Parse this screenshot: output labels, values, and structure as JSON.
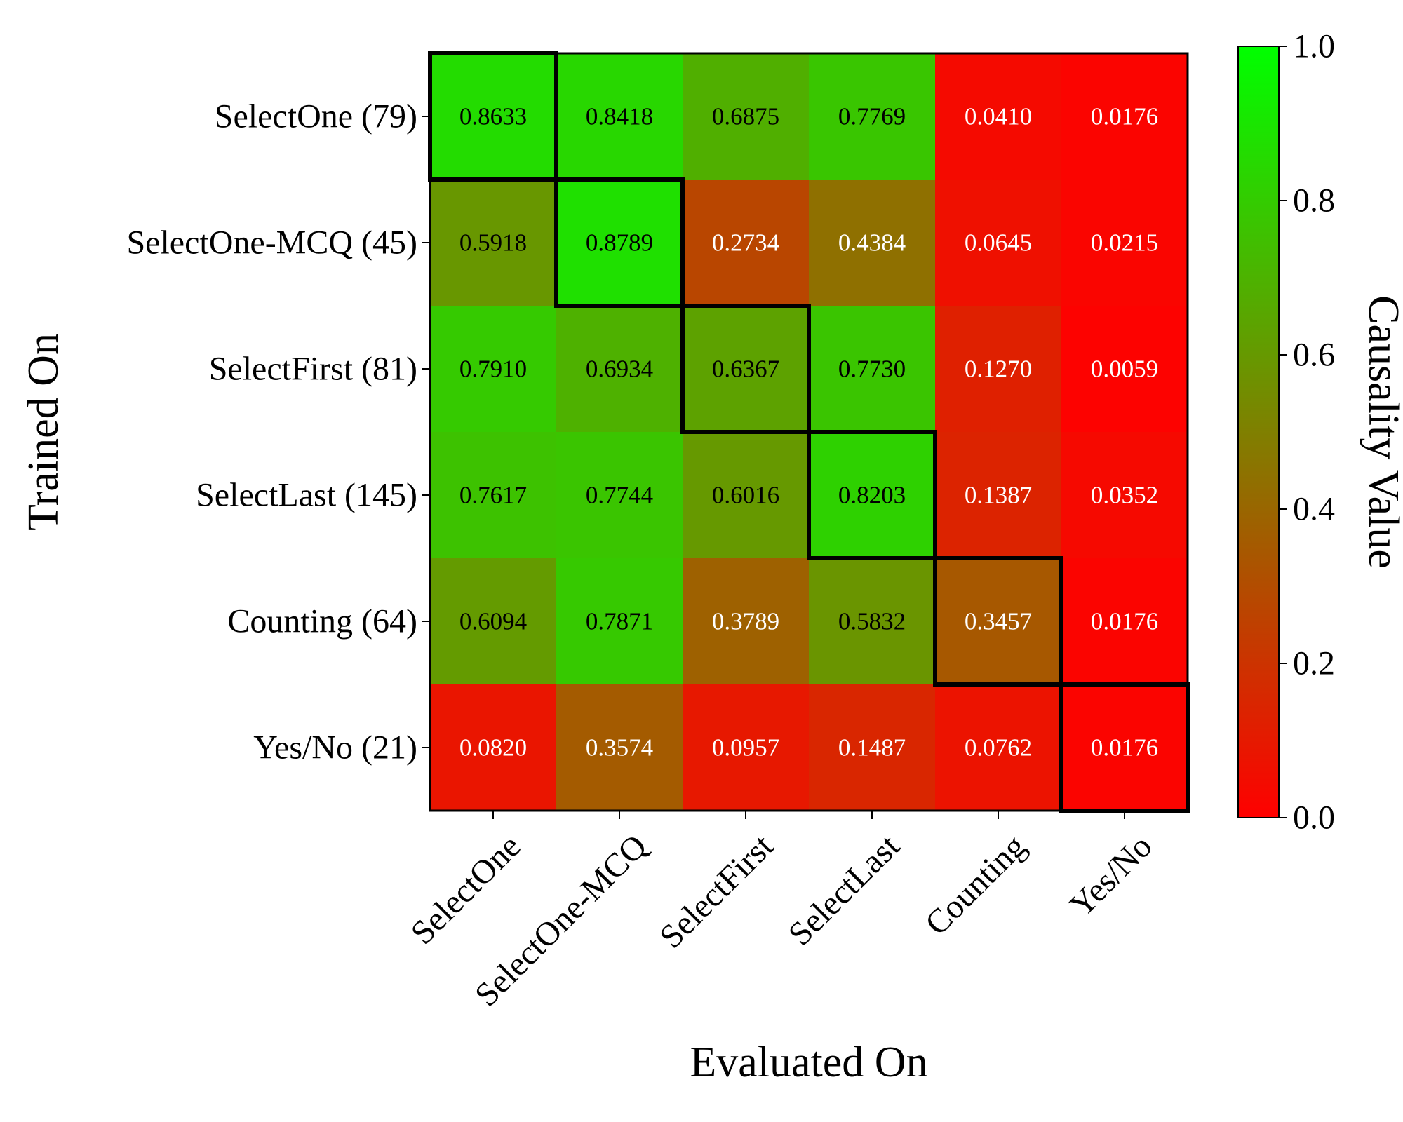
{
  "chart_data": {
    "type": "heatmap",
    "xlabel": "Evaluated On",
    "ylabel": "Trained On",
    "x_categories": [
      "SelectOne",
      "SelectOne-MCQ",
      "SelectFirst",
      "SelectLast",
      "Counting",
      "Yes/No"
    ],
    "y_categories": [
      "SelectOne (79)",
      "SelectOne-MCQ (45)",
      "SelectFirst (81)",
      "SelectLast (145)",
      "Counting (64)",
      "Yes/No (21)"
    ],
    "values": [
      [
        0.8633,
        0.8418,
        0.6875,
        0.7769,
        0.041,
        0.0176
      ],
      [
        0.5918,
        0.8789,
        0.2734,
        0.4384,
        0.0645,
        0.0215
      ],
      [
        0.791,
        0.6934,
        0.6367,
        0.773,
        0.127,
        0.0059
      ],
      [
        0.7617,
        0.7744,
        0.6016,
        0.8203,
        0.1387,
        0.0352
      ],
      [
        0.6094,
        0.7871,
        0.3789,
        0.5832,
        0.3457,
        0.0176
      ],
      [
        0.082,
        0.3574,
        0.0957,
        0.1487,
        0.0762,
        0.0176
      ]
    ],
    "value_labels": [
      [
        "0.8633",
        "0.8418",
        "0.6875",
        "0.7769",
        "0.0410",
        "0.0176"
      ],
      [
        "0.5918",
        "0.8789",
        "0.2734",
        "0.4384",
        "0.0645",
        "0.0215"
      ],
      [
        "0.7910",
        "0.6934",
        "0.6367",
        "0.7730",
        "0.1270",
        "0.0059"
      ],
      [
        "0.7617",
        "0.7744",
        "0.6016",
        "0.8203",
        "0.1387",
        "0.0352"
      ],
      [
        "0.6094",
        "0.7871",
        "0.3789",
        "0.5832",
        "0.3457",
        "0.0176"
      ],
      [
        "0.0820",
        "0.3574",
        "0.0957",
        "0.1487",
        "0.0762",
        "0.0176"
      ]
    ],
    "highlighted_cells": [
      [
        0,
        0
      ],
      [
        1,
        1
      ],
      [
        2,
        2
      ],
      [
        3,
        3
      ],
      [
        4,
        4
      ],
      [
        5,
        5
      ]
    ],
    "colorbar": {
      "label": "Causality Value",
      "range": [
        0.0,
        1.0
      ],
      "ticks": [
        "0.0",
        "0.2",
        "0.4",
        "0.6",
        "0.8",
        "1.0"
      ],
      "colormap": [
        "#ff0000",
        "#00ff00"
      ]
    }
  }
}
